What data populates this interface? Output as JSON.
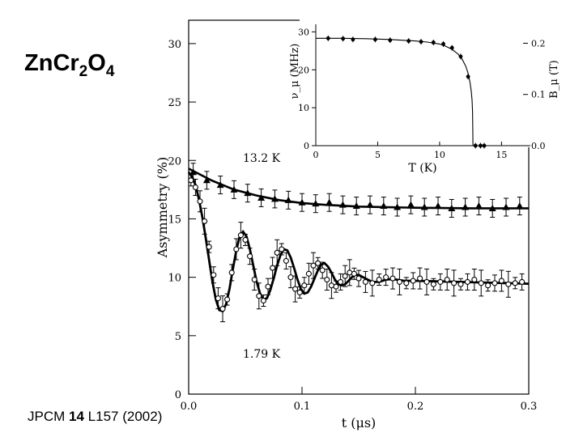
{
  "slide": {
    "compound_parts": [
      "Zn",
      "Cr",
      "2",
      "O",
      "4"
    ],
    "citation": {
      "journal": "JPCM",
      "volume": "14",
      "page_year": "L157 (2002)"
    }
  },
  "chart_data": [
    {
      "type": "scatter",
      "title": "",
      "xlabel": "t (μs)",
      "ylabel": "Asymmetry (%)",
      "xlim": [
        0.0,
        0.3
      ],
      "ylim": [
        0,
        32
      ],
      "xticks": [
        "0.0",
        "0.1",
        "0.2",
        "0.3"
      ],
      "yticks": [
        "0",
        "5",
        "10",
        "15",
        "20",
        "25",
        "30"
      ],
      "annotations": [
        "13.2 K",
        "1.79 K"
      ],
      "series": [
        {
          "name": "13.2 K",
          "marker": "triangle",
          "x": [
            0.004,
            0.016,
            0.028,
            0.04,
            0.052,
            0.064,
            0.076,
            0.088,
            0.1,
            0.112,
            0.124,
            0.136,
            0.148,
            0.16,
            0.172,
            0.184,
            0.196,
            0.208,
            0.22,
            0.232,
            0.244,
            0.256,
            0.268,
            0.28,
            0.292
          ],
          "y": [
            19.0,
            18.3,
            17.9,
            17.5,
            17.2,
            16.8,
            16.7,
            16.6,
            16.4,
            16.3,
            16.4,
            16.2,
            16.1,
            16.2,
            16.1,
            16.0,
            16.2,
            16.0,
            16.1,
            15.9,
            16.0,
            16.1,
            15.9,
            16.0,
            16.1
          ],
          "fit": [
            [
              0.0,
              19.3
            ],
            [
              0.02,
              18.3
            ],
            [
              0.04,
              17.5
            ],
            [
              0.06,
              17.0
            ],
            [
              0.08,
              16.6
            ],
            [
              0.1,
              16.35
            ],
            [
              0.12,
              16.2
            ],
            [
              0.15,
              16.05
            ],
            [
              0.2,
              15.95
            ],
            [
              0.25,
              15.9
            ],
            [
              0.3,
              15.9
            ]
          ]
        },
        {
          "name": "1.79 K",
          "marker": "circle",
          "x": [
            0.002,
            0.006,
            0.01,
            0.014,
            0.018,
            0.022,
            0.026,
            0.03,
            0.034,
            0.038,
            0.042,
            0.046,
            0.05,
            0.054,
            0.058,
            0.062,
            0.066,
            0.07,
            0.074,
            0.078,
            0.082,
            0.086,
            0.09,
            0.094,
            0.098,
            0.102,
            0.106,
            0.11,
            0.114,
            0.118,
            0.122,
            0.126,
            0.13,
            0.134,
            0.138,
            0.142,
            0.146,
            0.15,
            0.156,
            0.162,
            0.168,
            0.174,
            0.18,
            0.186,
            0.192,
            0.198,
            0.204,
            0.21,
            0.216,
            0.222,
            0.228,
            0.234,
            0.24,
            0.246,
            0.252,
            0.258,
            0.264,
            0.27,
            0.276,
            0.282,
            0.288,
            0.294
          ],
          "y": [
            18.3,
            17.7,
            16.5,
            14.8,
            12.6,
            10.2,
            8.2,
            7.3,
            8.1,
            10.4,
            12.4,
            13.6,
            13.2,
            11.8,
            9.8,
            8.4,
            8.0,
            9.2,
            10.8,
            12.1,
            12.4,
            11.4,
            10.0,
            9.0,
            8.7,
            9.3,
            10.3,
            11.0,
            11.2,
            10.6,
            9.8,
            9.3,
            9.2,
            9.6,
            10.1,
            10.4,
            10.3,
            9.9,
            9.6,
            9.5,
            9.8,
            10.0,
            9.9,
            9.6,
            9.5,
            9.7,
            9.9,
            9.6,
            9.4,
            9.6,
            9.8,
            9.5,
            9.4,
            9.6,
            9.8,
            9.5,
            9.3,
            9.5,
            9.7,
            9.4,
            9.5,
            9.6
          ],
          "fit": [
            [
              0.0,
              19.0
            ],
            [
              0.003,
              18.6
            ],
            [
              0.006,
              17.9
            ],
            [
              0.009,
              16.7
            ],
            [
              0.012,
              15.2
            ],
            [
              0.015,
              13.4
            ],
            [
              0.018,
              11.5
            ],
            [
              0.021,
              9.6
            ],
            [
              0.024,
              8.1
            ],
            [
              0.027,
              7.2
            ],
            [
              0.03,
              7.1
            ],
            [
              0.033,
              7.7
            ],
            [
              0.036,
              9.0
            ],
            [
              0.039,
              10.7
            ],
            [
              0.042,
              12.3
            ],
            [
              0.045,
              13.5
            ],
            [
              0.048,
              13.9
            ],
            [
              0.051,
              13.5
            ],
            [
              0.054,
              12.4
            ],
            [
              0.057,
              11.0
            ],
            [
              0.06,
              9.6
            ],
            [
              0.063,
              8.6
            ],
            [
              0.066,
              8.1
            ],
            [
              0.069,
              8.2
            ],
            [
              0.072,
              8.9
            ],
            [
              0.075,
              9.9
            ],
            [
              0.078,
              11.0
            ],
            [
              0.081,
              11.9
            ],
            [
              0.084,
              12.4
            ],
            [
              0.087,
              12.3
            ],
            [
              0.09,
              11.7
            ],
            [
              0.093,
              10.8
            ],
            [
              0.096,
              9.8
            ],
            [
              0.099,
              9.0
            ],
            [
              0.102,
              8.6
            ],
            [
              0.105,
              8.7
            ],
            [
              0.108,
              9.2
            ],
            [
              0.111,
              9.9
            ],
            [
              0.114,
              10.6
            ],
            [
              0.117,
              11.1
            ],
            [
              0.12,
              11.2
            ],
            [
              0.123,
              10.9
            ],
            [
              0.126,
              10.4
            ],
            [
              0.129,
              9.8
            ],
            [
              0.132,
              9.4
            ],
            [
              0.135,
              9.3
            ],
            [
              0.138,
              9.4
            ],
            [
              0.141,
              9.7
            ],
            [
              0.144,
              10.0
            ],
            [
              0.147,
              10.2
            ],
            [
              0.15,
              10.2
            ],
            [
              0.156,
              9.9
            ],
            [
              0.162,
              9.6
            ],
            [
              0.168,
              9.6
            ],
            [
              0.174,
              9.8
            ],
            [
              0.18,
              9.85
            ],
            [
              0.19,
              9.7
            ],
            [
              0.2,
              9.7
            ],
            [
              0.22,
              9.65
            ],
            [
              0.24,
              9.6
            ],
            [
              0.26,
              9.55
            ],
            [
              0.28,
              9.5
            ],
            [
              0.3,
              9.45
            ]
          ]
        }
      ]
    },
    {
      "type": "scatter",
      "title": "",
      "xlabel": "T (K)",
      "ylabel": "ν_μ (MHz)",
      "ylabel_right": "B_μ (T)",
      "xlim": [
        0,
        17
      ],
      "ylim": [
        0,
        32
      ],
      "ylim_right": [
        0.0,
        0.237
      ],
      "xticks": [
        "0",
        "5",
        "10",
        "15"
      ],
      "yticks": [
        "0",
        "10",
        "20",
        "30"
      ],
      "yticks_right": [
        "0.0",
        "0.1",
        "0.2"
      ],
      "series": [
        {
          "name": "ν_μ",
          "marker": "filled-circle",
          "x": [
            1.0,
            2.2,
            3.0,
            4.8,
            6.0,
            7.5,
            8.5,
            9.5,
            10.3,
            11.0,
            11.7,
            12.3,
            12.9,
            13.3,
            13.6
          ],
          "y": [
            28.3,
            28.2,
            28.0,
            28.0,
            27.8,
            27.6,
            27.4,
            27.2,
            26.8,
            25.8,
            23.5,
            18.2,
            0.0,
            0.0,
            0.0
          ],
          "fit": [
            [
              0.0,
              28.3
            ],
            [
              2,
              28.3
            ],
            [
              4,
              28.2
            ],
            [
              6,
              28.0
            ],
            [
              8,
              27.6
            ],
            [
              9,
              27.3
            ],
            [
              10,
              26.8
            ],
            [
              10.5,
              26.2
            ],
            [
              11,
              25.4
            ],
            [
              11.5,
              24.1
            ],
            [
              11.8,
              22.9
            ],
            [
              12.1,
              21.0
            ],
            [
              12.3,
              19.1
            ],
            [
              12.45,
              16.8
            ],
            [
              12.55,
              14.5
            ],
            [
              12.62,
              12.0
            ],
            [
              12.66,
              9.0
            ],
            [
              12.68,
              4.0
            ],
            [
              12.69,
              0.0
            ],
            [
              17,
              0.0
            ]
          ]
        }
      ]
    }
  ]
}
